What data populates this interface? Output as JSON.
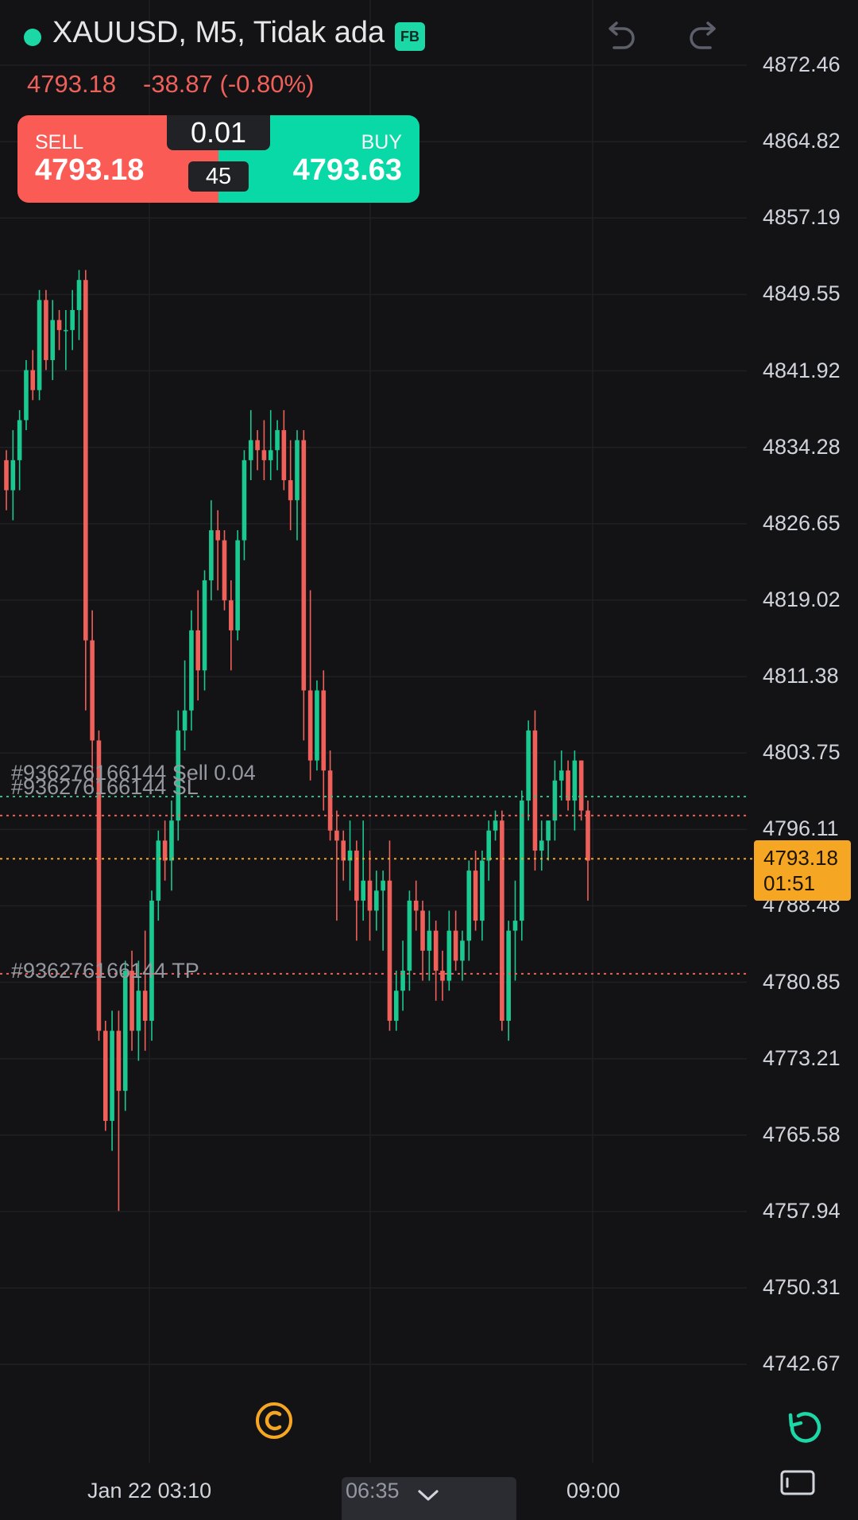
{
  "header": {
    "title": "XAUUSD, M5, Tidak ada",
    "badge": "FB",
    "status_color": "#1bd8a6",
    "last_price": "4793.18",
    "change": "-38.87 (-0.80%)"
  },
  "trade_panel": {
    "sell_label": "SELL",
    "sell_price": "4793.18",
    "buy_label": "BUY",
    "buy_price": "4793.63",
    "lot_size": "0.01",
    "spread": "45",
    "sell_color": "#fb5b55",
    "buy_color": "#08d9a7"
  },
  "toolbar": {
    "undo_icon": "undo-icon",
    "redo_icon": "redo-icon",
    "reset_icon": "reset-icon",
    "panel_icon": "panel-toggle-icon",
    "logo_icon": "broker-logo-icon"
  },
  "price_axis": {
    "ticks": [
      "4872.46",
      "4864.82",
      "4857.19",
      "4849.55",
      "4841.92",
      "4834.28",
      "4826.65",
      "4819.02",
      "4811.38",
      "4803.75",
      "4796.11",
      "4788.48",
      "4780.85",
      "4773.21",
      "4765.58",
      "4757.94",
      "4750.31",
      "4742.67"
    ],
    "current_price": "4793.18",
    "countdown": "01:51"
  },
  "time_axis": {
    "ticks": [
      "Jan 22 03:10",
      "09:00"
    ],
    "crosshair_time": "06:35"
  },
  "order_lines": {
    "sell_label": "#936276166144 Sell 0.04",
    "sl_label": "#936276166144 SL",
    "tp_label": "#936276166144 TP",
    "entry_price": 4799.4,
    "sl_price": 4797.5,
    "tp_price": 4781.7,
    "entry_color": "#2fbf85",
    "sl_color": "#f0605a",
    "tp_color": "#f0605a",
    "current_color": "#f5a623"
  },
  "chart_data": {
    "type": "candlestick",
    "symbol": "XAUUSD",
    "timeframe": "M5",
    "ylim": [
      4740,
      4875
    ],
    "up_color": "#1bc88f",
    "down_color": "#f0605a",
    "candles": [
      {
        "o": 4833,
        "h": 4834,
        "l": 4828,
        "c": 4830
      },
      {
        "o": 4830,
        "h": 4836,
        "l": 4827,
        "c": 4833
      },
      {
        "o": 4833,
        "h": 4838,
        "l": 4830,
        "c": 4837
      },
      {
        "o": 4837,
        "h": 4843,
        "l": 4836,
        "c": 4842
      },
      {
        "o": 4842,
        "h": 4844,
        "l": 4839,
        "c": 4840
      },
      {
        "o": 4840,
        "h": 4850,
        "l": 4839,
        "c": 4849
      },
      {
        "o": 4849,
        "h": 4850,
        "l": 4842,
        "c": 4843
      },
      {
        "o": 4843,
        "h": 4849,
        "l": 4841,
        "c": 4847
      },
      {
        "o": 4847,
        "h": 4848,
        "l": 4844,
        "c": 4846
      },
      {
        "o": 4846,
        "h": 4848,
        "l": 4842,
        "c": 4846
      },
      {
        "o": 4846,
        "h": 4850,
        "l": 4844,
        "c": 4848
      },
      {
        "o": 4848,
        "h": 4852,
        "l": 4845,
        "c": 4851
      },
      {
        "o": 4851,
        "h": 4852,
        "l": 4808,
        "c": 4815
      },
      {
        "o": 4815,
        "h": 4818,
        "l": 4800,
        "c": 4805
      },
      {
        "o": 4805,
        "h": 4806,
        "l": 4775,
        "c": 4776
      },
      {
        "o": 4776,
        "h": 4777,
        "l": 4766,
        "c": 4767
      },
      {
        "o": 4767,
        "h": 4778,
        "l": 4764,
        "c": 4776
      },
      {
        "o": 4776,
        "h": 4778,
        "l": 4758,
        "c": 4770
      },
      {
        "o": 4770,
        "h": 4783,
        "l": 4768,
        "c": 4782
      },
      {
        "o": 4782,
        "h": 4784,
        "l": 4774,
        "c": 4776
      },
      {
        "o": 4776,
        "h": 4783,
        "l": 4773,
        "c": 4780
      },
      {
        "o": 4780,
        "h": 4786,
        "l": 4774,
        "c": 4777
      },
      {
        "o": 4777,
        "h": 4790,
        "l": 4775,
        "c": 4789
      },
      {
        "o": 4789,
        "h": 4796,
        "l": 4787,
        "c": 4795
      },
      {
        "o": 4795,
        "h": 4797,
        "l": 4791,
        "c": 4793
      },
      {
        "o": 4793,
        "h": 4799,
        "l": 4790,
        "c": 4797
      },
      {
        "o": 4797,
        "h": 4808,
        "l": 4795,
        "c": 4806
      },
      {
        "o": 4806,
        "h": 4813,
        "l": 4804,
        "c": 4808
      },
      {
        "o": 4808,
        "h": 4818,
        "l": 4806,
        "c": 4816
      },
      {
        "o": 4816,
        "h": 4820,
        "l": 4809,
        "c": 4812
      },
      {
        "o": 4812,
        "h": 4822,
        "l": 4810,
        "c": 4821
      },
      {
        "o": 4821,
        "h": 4829,
        "l": 4819,
        "c": 4826
      },
      {
        "o": 4826,
        "h": 4828,
        "l": 4820,
        "c": 4825
      },
      {
        "o": 4825,
        "h": 4826,
        "l": 4818,
        "c": 4819
      },
      {
        "o": 4819,
        "h": 4821,
        "l": 4812,
        "c": 4816
      },
      {
        "o": 4816,
        "h": 4826,
        "l": 4815,
        "c": 4825
      },
      {
        "o": 4825,
        "h": 4834,
        "l": 4823,
        "c": 4833
      },
      {
        "o": 4833,
        "h": 4838,
        "l": 4831,
        "c": 4835
      },
      {
        "o": 4835,
        "h": 4836,
        "l": 4832,
        "c": 4834
      },
      {
        "o": 4834,
        "h": 4837,
        "l": 4831,
        "c": 4833
      },
      {
        "o": 4833,
        "h": 4838,
        "l": 4831,
        "c": 4834
      },
      {
        "o": 4834,
        "h": 4837,
        "l": 4832,
        "c": 4836
      },
      {
        "o": 4836,
        "h": 4838,
        "l": 4830,
        "c": 4831
      },
      {
        "o": 4831,
        "h": 4835,
        "l": 4826,
        "c": 4829
      },
      {
        "o": 4829,
        "h": 4836,
        "l": 4825,
        "c": 4835
      },
      {
        "o": 4835,
        "h": 4836,
        "l": 4805,
        "c": 4810
      },
      {
        "o": 4810,
        "h": 4820,
        "l": 4801,
        "c": 4803
      },
      {
        "o": 4803,
        "h": 4811,
        "l": 4802,
        "c": 4810
      },
      {
        "o": 4810,
        "h": 4812,
        "l": 4798,
        "c": 4802
      },
      {
        "o": 4802,
        "h": 4804,
        "l": 4795,
        "c": 4796
      },
      {
        "o": 4796,
        "h": 4798,
        "l": 4787,
        "c": 4795
      },
      {
        "o": 4795,
        "h": 4796,
        "l": 4791,
        "c": 4793
      },
      {
        "o": 4793,
        "h": 4797,
        "l": 4790,
        "c": 4794
      },
      {
        "o": 4794,
        "h": 4795,
        "l": 4785,
        "c": 4789
      },
      {
        "o": 4789,
        "h": 4797,
        "l": 4787,
        "c": 4791
      },
      {
        "o": 4791,
        "h": 4794,
        "l": 4785,
        "c": 4788
      },
      {
        "o": 4788,
        "h": 4792,
        "l": 4786,
        "c": 4790
      },
      {
        "o": 4790,
        "h": 4792,
        "l": 4784,
        "c": 4791
      },
      {
        "o": 4791,
        "h": 4795,
        "l": 4776,
        "c": 4777
      },
      {
        "o": 4777,
        "h": 4782,
        "l": 4776,
        "c": 4780
      },
      {
        "o": 4780,
        "h": 4785,
        "l": 4778,
        "c": 4782
      },
      {
        "o": 4782,
        "h": 4790,
        "l": 4780,
        "c": 4789
      },
      {
        "o": 4789,
        "h": 4791,
        "l": 4786,
        "c": 4788
      },
      {
        "o": 4788,
        "h": 4789,
        "l": 4781,
        "c": 4784
      },
      {
        "o": 4784,
        "h": 4788,
        "l": 4781,
        "c": 4786
      },
      {
        "o": 4786,
        "h": 4787,
        "l": 4779,
        "c": 4782
      },
      {
        "o": 4782,
        "h": 4784,
        "l": 4779,
        "c": 4781
      },
      {
        "o": 4781,
        "h": 4788,
        "l": 4780,
        "c": 4786
      },
      {
        "o": 4786,
        "h": 4788,
        "l": 4782,
        "c": 4783
      },
      {
        "o": 4783,
        "h": 4786,
        "l": 4781,
        "c": 4785
      },
      {
        "o": 4785,
        "h": 4793,
        "l": 4783,
        "c": 4792
      },
      {
        "o": 4792,
        "h": 4794,
        "l": 4786,
        "c": 4787
      },
      {
        "o": 4787,
        "h": 4794,
        "l": 4785,
        "c": 4793
      },
      {
        "o": 4793,
        "h": 4797,
        "l": 4791,
        "c": 4796
      },
      {
        "o": 4796,
        "h": 4798,
        "l": 4795,
        "c": 4797
      },
      {
        "o": 4797,
        "h": 4798,
        "l": 4776,
        "c": 4777
      },
      {
        "o": 4777,
        "h": 4787,
        "l": 4775,
        "c": 4786
      },
      {
        "o": 4786,
        "h": 4791,
        "l": 4781,
        "c": 4787
      },
      {
        "o": 4787,
        "h": 4800,
        "l": 4785,
        "c": 4799
      },
      {
        "o": 4799,
        "h": 4807,
        "l": 4797,
        "c": 4806
      },
      {
        "o": 4806,
        "h": 4808,
        "l": 4792,
        "c": 4794
      },
      {
        "o": 4794,
        "h": 4797,
        "l": 4792,
        "c": 4795
      },
      {
        "o": 4795,
        "h": 4797,
        "l": 4793,
        "c": 4797
      },
      {
        "o": 4797,
        "h": 4803,
        "l": 4795,
        "c": 4801
      },
      {
        "o": 4801,
        "h": 4804,
        "l": 4799,
        "c": 4802
      },
      {
        "o": 4802,
        "h": 4803,
        "l": 4798,
        "c": 4799
      },
      {
        "o": 4799,
        "h": 4804,
        "l": 4796,
        "c": 4803
      },
      {
        "o": 4803,
        "h": 4803,
        "l": 4797,
        "c": 4798
      },
      {
        "o": 4798,
        "h": 4799,
        "l": 4789,
        "c": 4793
      }
    ]
  }
}
